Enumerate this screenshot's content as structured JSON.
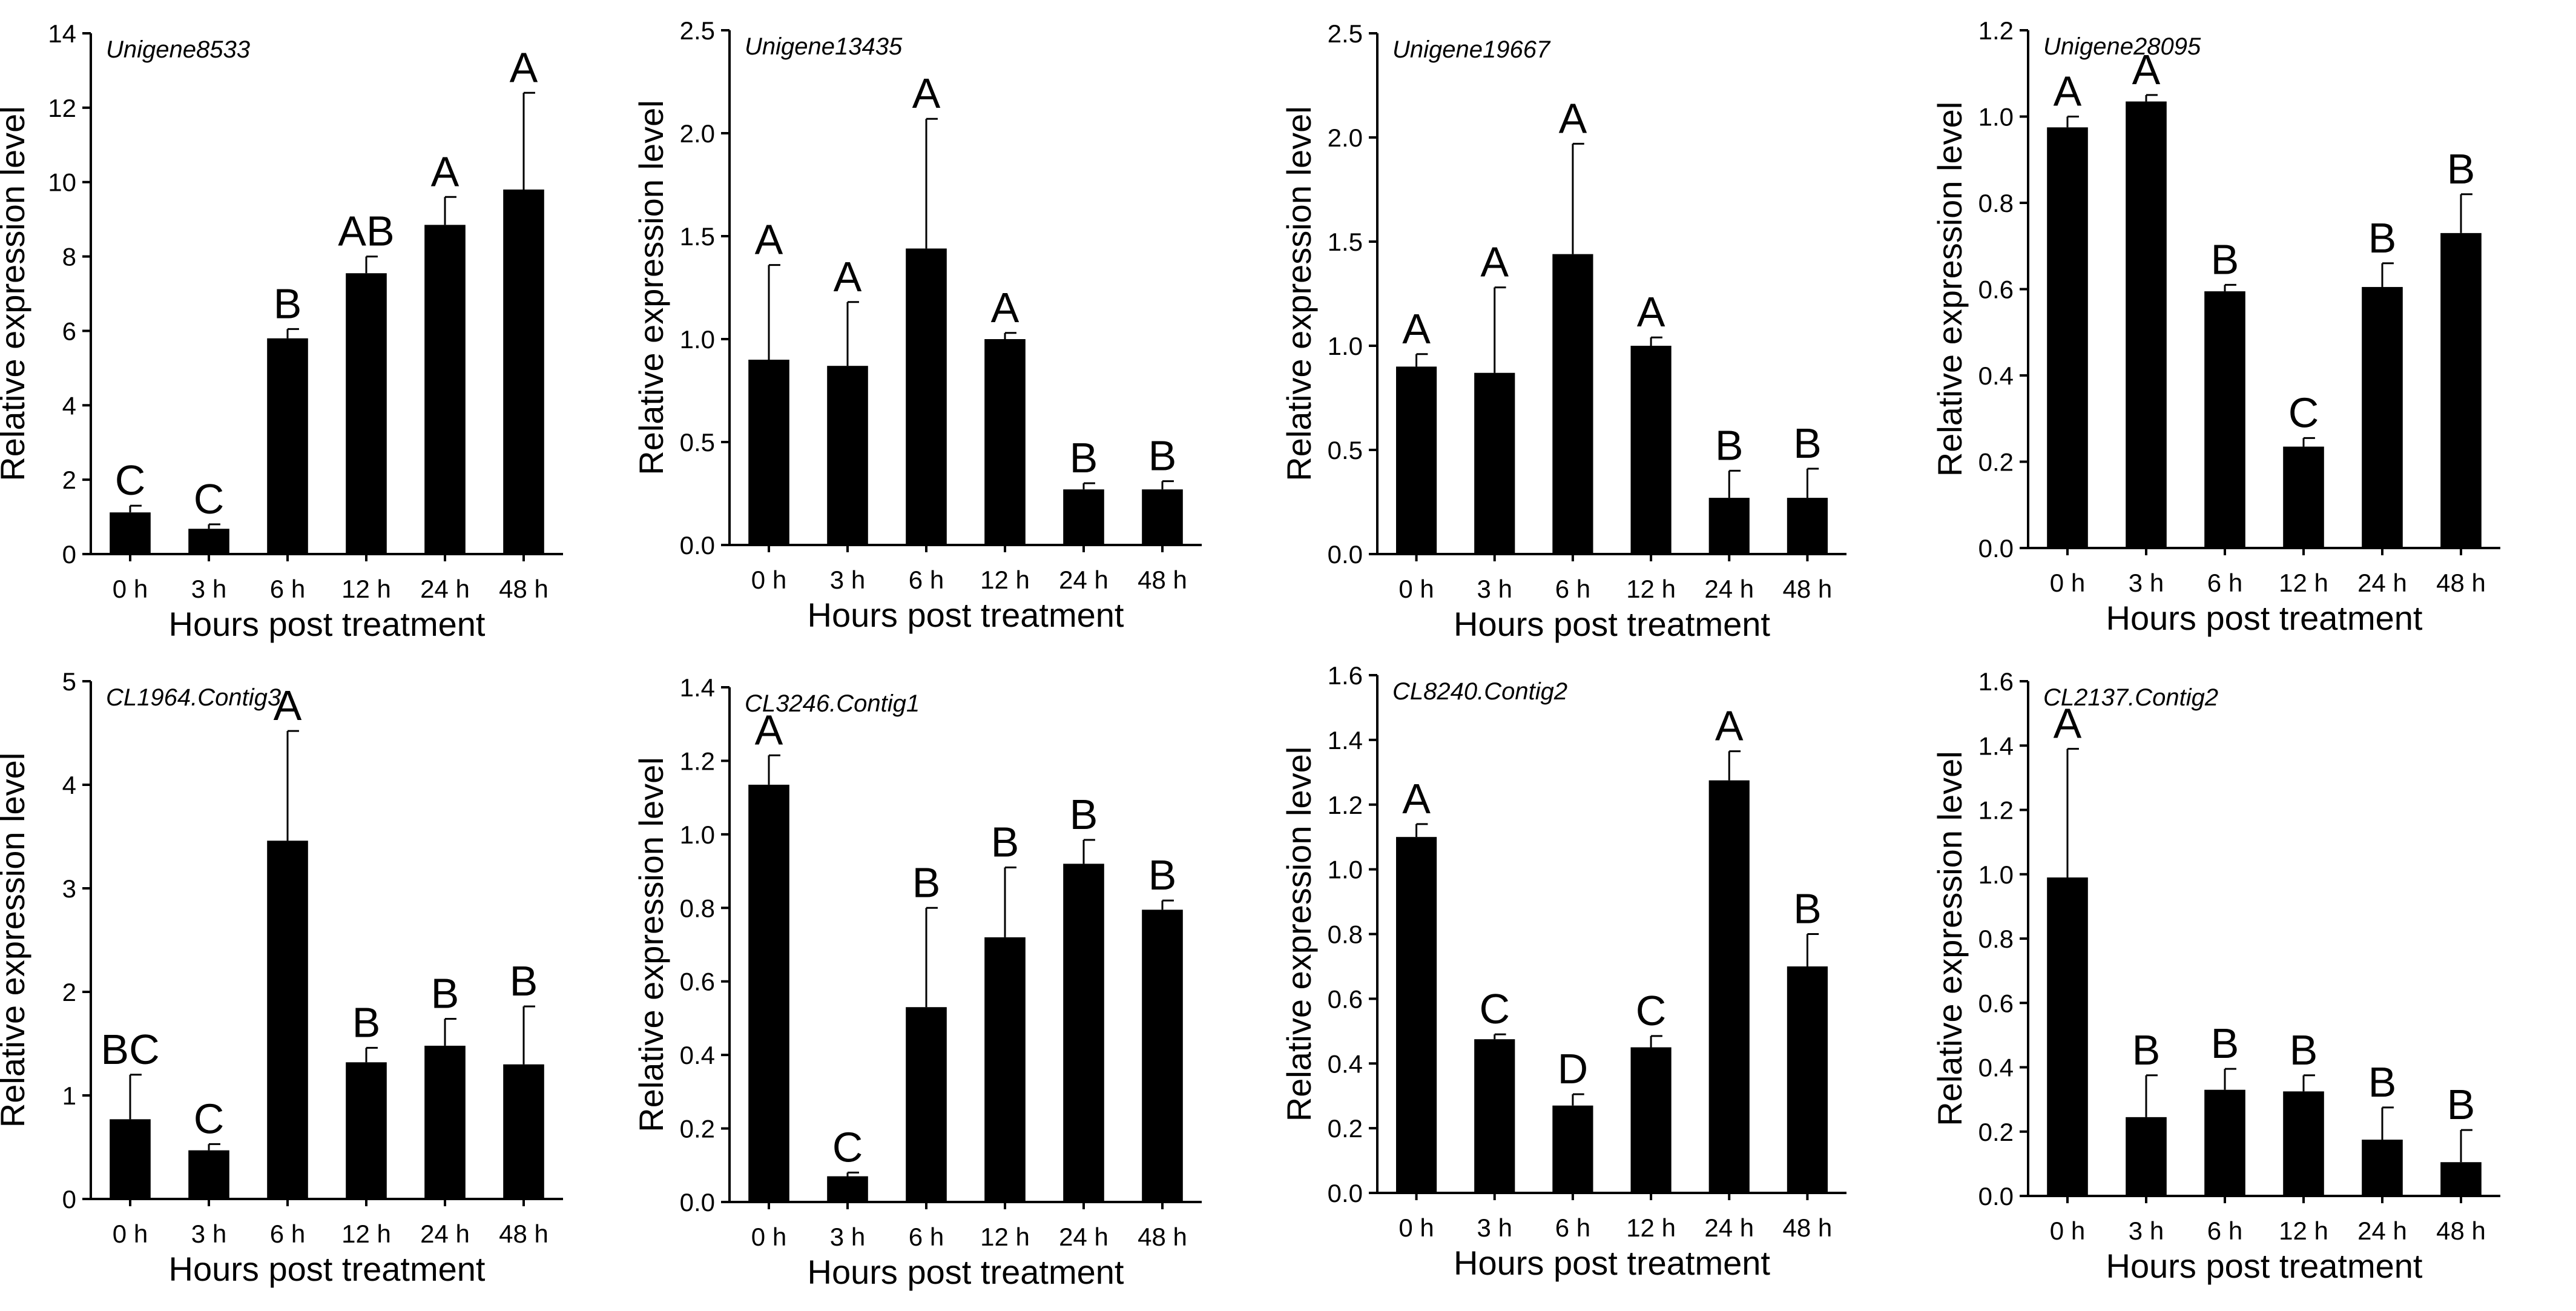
{
  "chart_data": [
    {
      "type": "bar",
      "title": "Unigene8533",
      "xlabel": "Hours post treatment",
      "ylabel": "Relative expression level",
      "categories": [
        "0 h",
        "3 h",
        "6 h",
        "12 h",
        "24 h",
        "48 h"
      ],
      "values": [
        1.12,
        0.68,
        5.8,
        7.55,
        8.85,
        9.8
      ],
      "errors": [
        0.18,
        0.12,
        0.25,
        0.45,
        0.75,
        2.6
      ],
      "letters": [
        "C",
        "C",
        "B",
        "AB",
        "A",
        "A"
      ],
      "ylim": [
        0,
        14
      ],
      "yticks": [
        "0",
        "2",
        "4",
        "6",
        "8",
        "10",
        "12",
        "14"
      ]
    },
    {
      "type": "bar",
      "title": "Unigene13435",
      "xlabel": "Hours post treatment",
      "ylabel": "Relative expression level",
      "categories": [
        "0 h",
        "3 h",
        "6 h",
        "12 h",
        "24 h",
        "48 h"
      ],
      "values": [
        0.9,
        0.87,
        1.44,
        1.0,
        0.27,
        0.27
      ],
      "errors": [
        0.46,
        0.31,
        0.63,
        0.03,
        0.03,
        0.04
      ],
      "letters": [
        "A",
        "A",
        "A",
        "A",
        "B",
        "B"
      ],
      "ylim": [
        0,
        2.5
      ],
      "yticks": [
        "0.0",
        "0.5",
        "1.0",
        "1.5",
        "2.0",
        "2.5"
      ]
    },
    {
      "type": "bar",
      "title": "Unigene19667",
      "xlabel": "Hours post treatment",
      "ylabel": "Relative expression level",
      "categories": [
        "0 h",
        "3 h",
        "6 h",
        "12 h",
        "24 h",
        "48 h"
      ],
      "values": [
        0.9,
        0.87,
        1.44,
        1.0,
        0.27,
        0.27
      ],
      "errors": [
        0.06,
        0.41,
        0.53,
        0.04,
        0.13,
        0.14
      ],
      "letters": [
        "A",
        "A",
        "A",
        "A",
        "B",
        "B"
      ],
      "ylim": [
        0,
        2.5
      ],
      "yticks": [
        "0.0",
        "0.5",
        "1.0",
        "1.5",
        "2.0",
        "2.5"
      ]
    },
    {
      "type": "bar",
      "title": "Unigene28095",
      "xlabel": "Hours post treatment",
      "ylabel": "Relative expression level",
      "categories": [
        "0 h",
        "3 h",
        "6 h",
        "12 h",
        "24 h",
        "48 h"
      ],
      "values": [
        0.975,
        1.035,
        0.595,
        0.235,
        0.605,
        0.73
      ],
      "errors": [
        0.025,
        0.015,
        0.015,
        0.02,
        0.055,
        0.09
      ],
      "letters": [
        "A",
        "A",
        "B",
        "C",
        "B",
        "B"
      ],
      "ylim": [
        0,
        1.2
      ],
      "yticks": [
        "0.0",
        "0.2",
        "0.4",
        "0.6",
        "0.8",
        "1.0",
        "1.2"
      ]
    },
    {
      "type": "bar",
      "title": "CL1964.Contig3",
      "xlabel": "Hours post treatment",
      "ylabel": "Relative expression level",
      "categories": [
        "0 h",
        "3 h",
        "6 h",
        "12 h",
        "24 h",
        "48 h"
      ],
      "values": [
        0.77,
        0.47,
        3.46,
        1.32,
        1.48,
        1.3
      ],
      "errors": [
        0.43,
        0.06,
        1.06,
        0.14,
        0.26,
        0.56
      ],
      "letters": [
        "BC",
        "C",
        "A",
        "B",
        "B",
        "B"
      ],
      "ylim": [
        0,
        5
      ],
      "yticks": [
        "0",
        "1",
        "2",
        "3",
        "4",
        "5"
      ]
    },
    {
      "type": "bar",
      "title": "CL3246.Contig1",
      "xlabel": "Hours post treatment",
      "ylabel": "Relative expression level",
      "categories": [
        "0 h",
        "3 h",
        "6 h",
        "12 h",
        "24 h",
        "48 h"
      ],
      "values": [
        1.135,
        0.07,
        0.53,
        0.72,
        0.92,
        0.795
      ],
      "errors": [
        0.08,
        0.01,
        0.27,
        0.19,
        0.065,
        0.025
      ],
      "letters": [
        "A",
        "C",
        "B",
        "B",
        "B",
        "B"
      ],
      "ylim": [
        0,
        1.4
      ],
      "yticks": [
        "0.0",
        "0.2",
        "0.4",
        "0.6",
        "0.8",
        "1.0",
        "1.2",
        "1.4"
      ]
    },
    {
      "type": "bar",
      "title": "CL8240.Contig2",
      "xlabel": "Hours post treatment",
      "ylabel": "Relative expression level",
      "categories": [
        "0 h",
        "3 h",
        "6 h",
        "12 h",
        "24 h",
        "48 h"
      ],
      "values": [
        1.1,
        0.475,
        0.27,
        0.45,
        1.275,
        0.7
      ],
      "errors": [
        0.04,
        0.015,
        0.035,
        0.035,
        0.09,
        0.1
      ],
      "letters": [
        "A",
        "C",
        "D",
        "C",
        "A",
        "B"
      ],
      "ylim": [
        0,
        1.6
      ],
      "yticks": [
        "0.0",
        "0.2",
        "0.4",
        "0.6",
        "0.8",
        "1.0",
        "1.2",
        "1.4",
        "1.6"
      ]
    },
    {
      "type": "bar",
      "title": "CL2137.Contig2",
      "xlabel": "Hours post treatment",
      "ylabel": "Relative expression level",
      "categories": [
        "0 h",
        "3 h",
        "6 h",
        "12 h",
        "24 h",
        "48 h"
      ],
      "values": [
        0.99,
        0.245,
        0.33,
        0.325,
        0.175,
        0.105
      ],
      "errors": [
        0.4,
        0.13,
        0.065,
        0.05,
        0.1,
        0.1
      ],
      "letters": [
        "A",
        "B",
        "B",
        "B",
        "B",
        "B"
      ],
      "ylim": [
        0,
        1.6
      ],
      "yticks": [
        "0.0",
        "0.2",
        "0.4",
        "0.6",
        "0.8",
        "1.0",
        "1.2",
        "1.4",
        "1.6"
      ]
    }
  ]
}
